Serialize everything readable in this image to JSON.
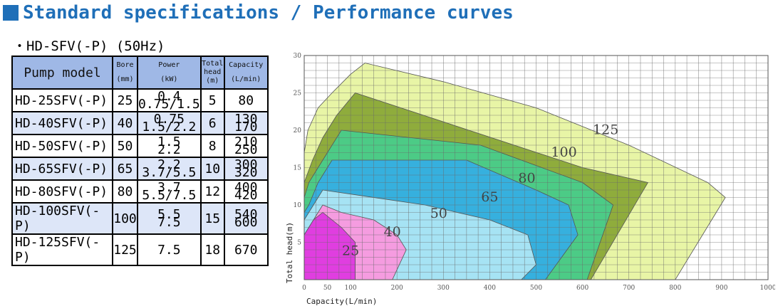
{
  "page": {
    "title": "Standard specifications / Performance curves",
    "subtitle": "・HD-SFV(-P)  (50Hz)"
  },
  "table": {
    "headers": {
      "model": "Pump model",
      "bore": [
        "Bore",
        "(mm)"
      ],
      "power": [
        "Power",
        "(kW)"
      ],
      "head": [
        "Total",
        "head",
        "(m)"
      ],
      "capacity": [
        "Capacity",
        "(L/min)"
      ]
    },
    "rows": [
      {
        "model": "HD-25SFV(-P)",
        "bore": "25",
        "power": [
          "0.4",
          "0.75/1.5"
        ],
        "head": "5",
        "capacity": [
          "80"
        ]
      },
      {
        "model": "HD-40SFV(-P)",
        "bore": "40",
        "power": [
          "0.75",
          "1.5/2.2"
        ],
        "head": "6",
        "capacity": [
          "130",
          "170"
        ]
      },
      {
        "model": "HD-50SFV(-P)",
        "bore": "50",
        "power": [
          "1.5",
          "2.2"
        ],
        "head": "8",
        "capacity": [
          "210",
          "250"
        ]
      },
      {
        "model": "HD-65SFV(-P)",
        "bore": "65",
        "power": [
          "2.2",
          "3.7/5.5"
        ],
        "head": "10",
        "capacity": [
          "300",
          "320"
        ]
      },
      {
        "model": "HD-80SFV(-P)",
        "bore": "80",
        "power": [
          "3.7",
          "5.5/7.5"
        ],
        "head": "12",
        "capacity": [
          "400",
          "420"
        ]
      },
      {
        "model": "HD-100SFV(-P)",
        "bore": "100",
        "power": [
          "5.5",
          "7.5"
        ],
        "head": "15",
        "capacity": [
          "540",
          "600"
        ]
      },
      {
        "model": "HD-125SFV(-P)",
        "bore": "125",
        "power": [
          "7.5"
        ],
        "head": "18",
        "capacity": [
          "670"
        ]
      }
    ]
  },
  "chart_data": {
    "type": "area",
    "xlabel": "Capacity(L/min)",
    "ylabel": "Total head(m)",
    "xlim": [
      0,
      1000
    ],
    "ylim": [
      0,
      30
    ],
    "x_ticks": [
      0,
      50,
      100,
      200,
      300,
      400,
      500,
      600,
      700,
      800,
      900,
      1000
    ],
    "y_ticks": [
      5,
      10,
      15,
      20,
      25,
      30
    ],
    "grid": true,
    "regions": [
      {
        "name": "125",
        "color": "#e8f5a6",
        "points": [
          [
            0,
            0
          ],
          [
            0,
            17
          ],
          [
            8,
            20
          ],
          [
            30,
            23
          ],
          [
            60,
            25
          ],
          [
            100,
            27.5
          ],
          [
            131,
            29
          ],
          [
            300,
            26.5
          ],
          [
            500,
            23
          ],
          [
            700,
            18
          ],
          [
            870,
            13
          ],
          [
            908,
            11
          ],
          [
            800,
            0
          ]
        ]
      },
      {
        "name": "100",
        "color": "#8fac3c",
        "points": [
          [
            0,
            0
          ],
          [
            0,
            13
          ],
          [
            18,
            16
          ],
          [
            40,
            19
          ],
          [
            70,
            22
          ],
          [
            110,
            25
          ],
          [
            600,
            15
          ],
          [
            741,
            13
          ],
          [
            618,
            0
          ]
        ]
      },
      {
        "name": "80",
        "color": "#4ccb86",
        "points": [
          [
            0,
            0
          ],
          [
            0,
            11
          ],
          [
            10,
            13
          ],
          [
            40,
            16
          ],
          [
            80,
            20
          ],
          [
            380,
            18
          ],
          [
            600,
            13
          ],
          [
            666,
            10
          ],
          [
            610,
            0
          ],
          [
            482,
            0
          ]
        ]
      },
      {
        "name": "65",
        "color": "#36b0de",
        "points": [
          [
            0,
            0
          ],
          [
            0,
            9
          ],
          [
            10,
            10
          ],
          [
            30,
            13
          ],
          [
            60,
            16
          ],
          [
            350,
            16
          ],
          [
            500,
            12
          ],
          [
            570,
            10
          ],
          [
            590,
            6
          ],
          [
            520,
            0
          ],
          [
            382,
            0
          ]
        ]
      },
      {
        "name": "50",
        "color": "#a6e3f4",
        "points": [
          [
            0,
            0
          ],
          [
            0,
            8
          ],
          [
            20,
            10
          ],
          [
            40,
            12
          ],
          [
            260,
            10
          ],
          [
            400,
            8
          ],
          [
            482,
            6
          ],
          [
            500,
            2
          ],
          [
            468,
            0
          ]
        ]
      },
      {
        "name": "40",
        "color": "#f59ce0",
        "points": [
          [
            0,
            0
          ],
          [
            0,
            6
          ],
          [
            20,
            8
          ],
          [
            40,
            10
          ],
          [
            80,
            9
          ],
          [
            150,
            8
          ],
          [
            200,
            6
          ],
          [
            220,
            4
          ],
          [
            190,
            0
          ]
        ]
      },
      {
        "name": "25",
        "color": "#e03ee0",
        "points": [
          [
            0,
            0
          ],
          [
            0,
            6
          ],
          [
            20,
            8
          ],
          [
            40,
            9
          ],
          [
            80,
            7
          ],
          [
            110,
            5
          ],
          [
            110,
            0
          ]
        ]
      }
    ],
    "labels": [
      {
        "text": "125",
        "x": 650,
        "y": 19.5
      },
      {
        "text": "100",
        "x": 560,
        "y": 16.5
      },
      {
        "text": "80",
        "x": 480,
        "y": 13
      },
      {
        "text": "65",
        "x": 400,
        "y": 10.5
      },
      {
        "text": "50",
        "x": 290,
        "y": 8.3
      },
      {
        "text": "40",
        "x": 190,
        "y": 5.8
      },
      {
        "text": "25",
        "x": 100,
        "y": 3.3
      }
    ]
  }
}
